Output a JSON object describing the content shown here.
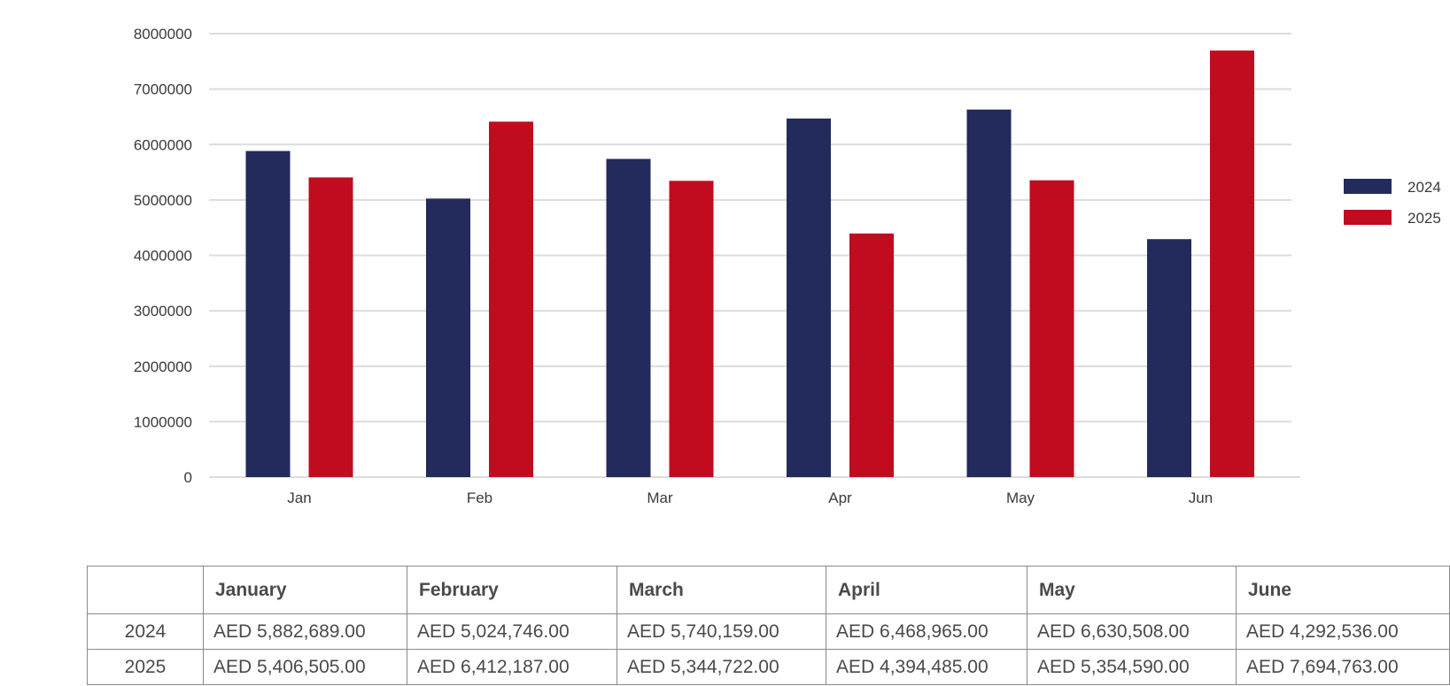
{
  "chart_data": {
    "type": "bar",
    "categories": [
      "Jan",
      "Feb",
      "Mar",
      "Apr",
      "May",
      "Jun"
    ],
    "series": [
      {
        "name": "2024",
        "color": "#232a5c",
        "values": [
          5882689,
          5024746,
          5740159,
          6468965,
          6630508,
          4292536
        ]
      },
      {
        "name": "2025",
        "color": "#c00c1e",
        "values": [
          5406505,
          6412187,
          5344722,
          4394485,
          5354590,
          7694763
        ]
      }
    ],
    "ylim": [
      0,
      8000000
    ],
    "yticks": [
      "0",
      "1000000",
      "2000000",
      "3000000",
      "4000000",
      "5000000",
      "6000000",
      "7000000",
      "8000000"
    ],
    "grid": true,
    "legend": "right",
    "title": "",
    "xlabel": "",
    "ylabel": ""
  },
  "table": {
    "columns": [
      "",
      "January",
      "February",
      "March",
      "April",
      "May",
      "June"
    ],
    "rows": [
      {
        "label": "2024",
        "cells": [
          "AED 5,882,689.00",
          "AED 5,024,746.00",
          "AED 5,740,159.00",
          "AED 6,468,965.00",
          "AED 6,630,508.00",
          "AED 4,292,536.00"
        ]
      },
      {
        "label": "2025",
        "cells": [
          "AED 5,406,505.00",
          "AED 6,412,187.00",
          "AED 5,344,722.00",
          "AED 4,394,485.00",
          "AED 5,354,590.00",
          "AED 7,694,763.00"
        ]
      }
    ]
  }
}
